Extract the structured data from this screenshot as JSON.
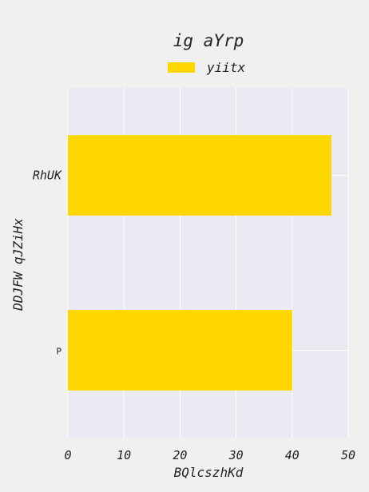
{
  "chart_data": {
    "type": "bar",
    "orientation": "horizontal",
    "title": "ig aYrp",
    "xlabel": "BQlcszhKd",
    "ylabel": "DDJFW qJZiHx",
    "categories": [
      "RhUK",
      "P"
    ],
    "series": [
      {
        "name": "yiitx",
        "values": [
          47,
          40
        ],
        "color": "#ffd700"
      }
    ],
    "xlim": [
      0,
      50
    ],
    "xticks": [
      "0",
      "10",
      "20",
      "30",
      "40",
      "50"
    ],
    "grid": true,
    "legend_position": "top-center"
  },
  "colors": {
    "page_background": "#f0f0f0",
    "plot_background": "#eaeaf2",
    "grid": "#ffffff",
    "bar": "#ffd700",
    "text": "#222222"
  }
}
